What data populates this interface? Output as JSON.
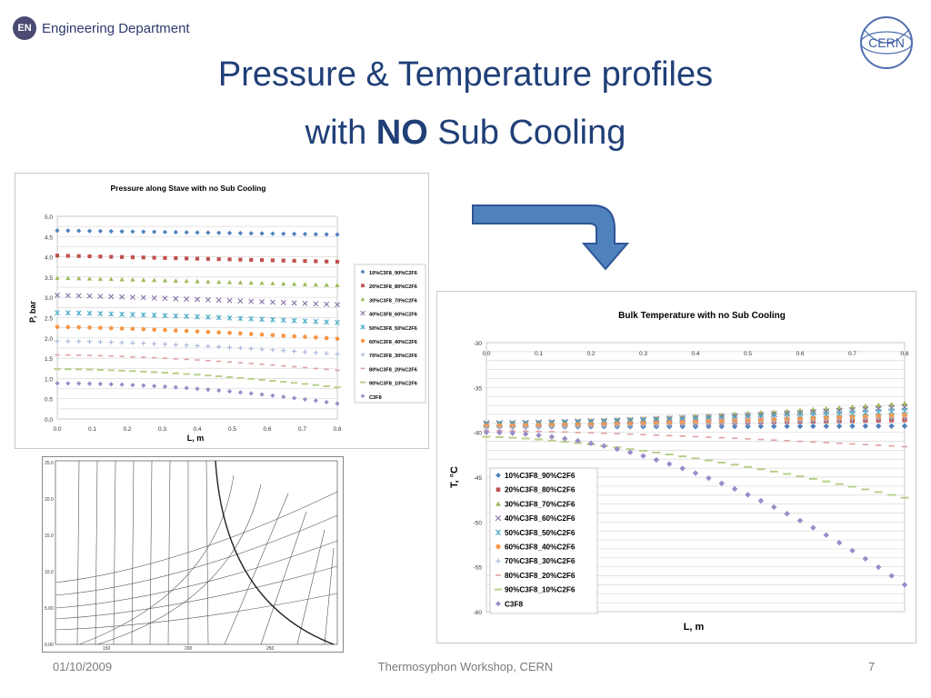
{
  "header": {
    "dept_badge": "EN",
    "dept_name": "Engineering Department",
    "cern_label": "CERN"
  },
  "title": {
    "line1": "Pressure & Temperature profiles",
    "line2_pre": "with ",
    "line2_bold": "NO",
    "line2_post": " Sub Cooling"
  },
  "footer": {
    "date": "01/10/2009",
    "event": "Thermosyphon Workshop, CERN",
    "page": "7"
  },
  "colors": {
    "title": "#1f3f77",
    "arrow": "#4f81bd"
  },
  "legend": [
    "10%C3F8_90%C2F6",
    "20%C3F8_80%C2F6",
    "30%C3F8_70%C2F6",
    "40%C3F8_60%C2F6",
    "50%C3F8_50%C2F6",
    "60%C3F8_40%C2F6",
    "70%C3F8_30%C2F6",
    "80%C3F8_20%C2F6",
    "90%C3F8_10%C2F6",
    "C3F8"
  ],
  "series_style": [
    {
      "color": "#4f81bd",
      "marker": "diamond"
    },
    {
      "color": "#c0504d",
      "marker": "square"
    },
    {
      "color": "#9bbb59",
      "marker": "triangle"
    },
    {
      "color": "#8064a2",
      "marker": "x"
    },
    {
      "color": "#4bacc6",
      "marker": "star"
    },
    {
      "color": "#f79646",
      "marker": "circle"
    },
    {
      "color": "#a0b0d8",
      "marker": "plus"
    },
    {
      "color": "#e0a0a0",
      "marker": "dash"
    },
    {
      "color": "#b8d08a",
      "marker": "longdash"
    },
    {
      "color": "#9b8cc8",
      "marker": "diamond"
    }
  ],
  "chart_data": [
    {
      "type": "scatter",
      "title": "Pressure along Stave with no Sub Cooling",
      "xlabel": "L, m",
      "ylabel": "P, bar",
      "xlim": [
        0,
        0.8
      ],
      "ylim": [
        0,
        5
      ],
      "xticks": [
        "0.0",
        "0.1",
        "0.2",
        "0.3",
        "0.4",
        "0.5",
        "0.6",
        "0.7",
        "0.8"
      ],
      "yticks": [
        "0.0",
        "0.5",
        "1.0",
        "1.5",
        "2.0",
        "2.5",
        "3.0",
        "3.5",
        "4.0",
        "4.5",
        "5.0"
      ],
      "x_points": 27,
      "legend_position": "right",
      "series": [
        {
          "name": "10%C3F8_90%C2F6",
          "start": 4.65,
          "end": 4.55,
          "curve": 1.0
        },
        {
          "name": "20%C3F8_80%C2F6",
          "start": 4.03,
          "end": 3.88,
          "curve": 1.0
        },
        {
          "name": "30%C3F8_70%C2F6",
          "start": 3.48,
          "end": 3.3,
          "curve": 1.1
        },
        {
          "name": "40%C3F8_60%C2F6",
          "start": 3.05,
          "end": 2.82,
          "curve": 1.2
        },
        {
          "name": "50%C3F8_50%C2F6",
          "start": 2.62,
          "end": 2.38,
          "curve": 1.3
        },
        {
          "name": "60%C3F8_40%C2F6",
          "start": 2.27,
          "end": 1.98,
          "curve": 1.4
        },
        {
          "name": "70%C3F8_30%C2F6",
          "start": 1.92,
          "end": 1.6,
          "curve": 1.5
        },
        {
          "name": "80%C3F8_20%C2F6",
          "start": 1.58,
          "end": 1.2,
          "curve": 1.6
        },
        {
          "name": "90%C3F8_10%C2F6",
          "start": 1.23,
          "end": 0.78,
          "curve": 1.7
        },
        {
          "name": "C3F8",
          "start": 0.88,
          "end": 0.38,
          "curve": 1.9
        }
      ]
    },
    {
      "type": "scatter",
      "title": "Bulk Temperature with no Sub Cooling",
      "xlabel": "L, m",
      "ylabel": "T, °C",
      "xlim": [
        0,
        0.8
      ],
      "ylim": [
        -60,
        -30
      ],
      "xticks": [
        "0.0",
        "0.1",
        "0.2",
        "0.3",
        "0.4",
        "0.5",
        "0.6",
        "0.7",
        "0.8"
      ],
      "yticks": [
        "-30",
        "-35",
        "-40",
        "-45",
        "-50",
        "-55",
        "-60"
      ],
      "x_points": 33,
      "legend_position": "left",
      "series": [
        {
          "name": "10%C3F8_90%C2F6",
          "start": -39.4,
          "end": -39.3,
          "curve": 1.0
        },
        {
          "name": "20%C3F8_80%C2F6",
          "start": -39.2,
          "end": -38.6,
          "curve": 1.2
        },
        {
          "name": "30%C3F8_70%C2F6",
          "start": -39.0,
          "end": -36.8,
          "curve": 1.5
        },
        {
          "name": "40%C3F8_60%C2F6",
          "start": -39.0,
          "end": -37.2,
          "curve": 1.5
        },
        {
          "name": "50%C3F8_50%C2F6",
          "start": -39.1,
          "end": -37.6,
          "curve": 1.5
        },
        {
          "name": "60%C3F8_40%C2F6",
          "start": -39.3,
          "end": -38.1,
          "curve": 1.5
        },
        {
          "name": "70%C3F8_30%C2F6",
          "start": -39.5,
          "end": -38.4,
          "curve": 1.5
        },
        {
          "name": "80%C3F8_20%C2F6",
          "start": -39.8,
          "end": -41.6,
          "curve": 1.4
        },
        {
          "name": "90%C3F8_10%C2F6",
          "start": -40.5,
          "end": -47.3,
          "curve": 1.5
        },
        {
          "name": "C3F8",
          "start": -40.0,
          "end": -57.0,
          "curve": 1.9
        }
      ]
    }
  ],
  "diagram": {
    "description_label": "phase diagram (p-h)"
  }
}
